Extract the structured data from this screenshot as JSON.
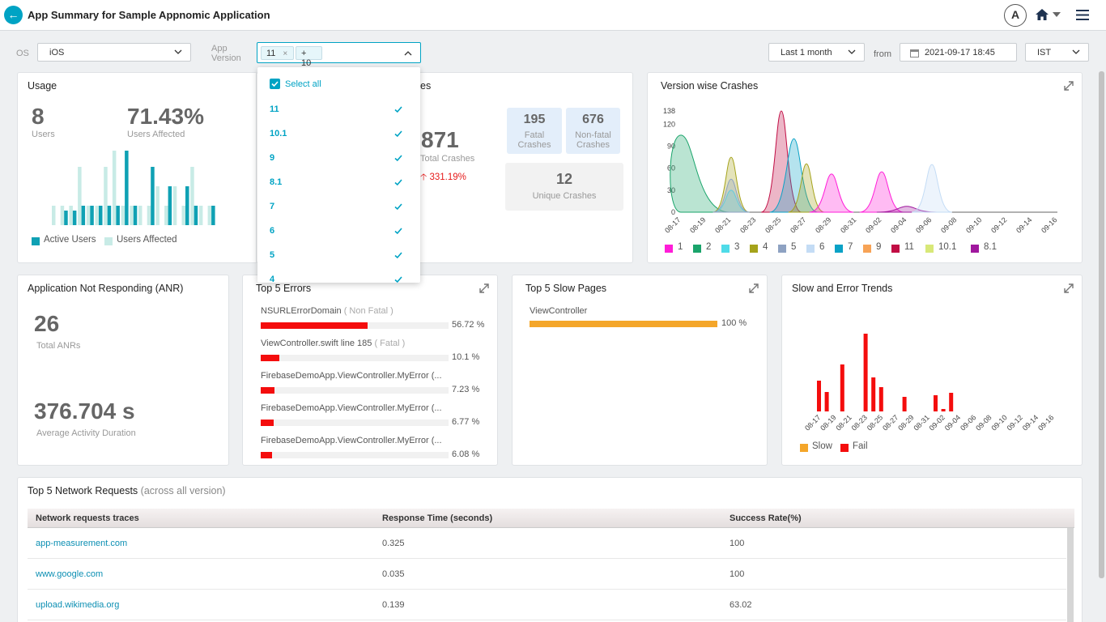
{
  "header": {
    "title": "App Summary for Sample Appnomic Application",
    "avatar_initial": "A",
    "back_icon": "arrow-left-icon",
    "menu_icon": "hamburger-icon"
  },
  "filters": {
    "os_label": "OS",
    "os_value": "iOS",
    "app_version_label": "App Version",
    "selected_chip": "11",
    "more_chip": "+ 10",
    "range_value": "Last 1 month",
    "from_label": "from",
    "date_value": "2021-09-17 18:45",
    "tz_value": "IST"
  },
  "version_dropdown": {
    "select_all": "Select all",
    "items": [
      "11",
      "10.1",
      "9",
      "8.1",
      "7",
      "6",
      "5",
      "4"
    ]
  },
  "usage": {
    "title": "Usage",
    "users": "8",
    "users_label": "Users",
    "affected": "71.43%",
    "affected_label": "Users Affected",
    "legend_active": "Active Users",
    "legend_affected": "Users Affected",
    "colors": {
      "active": "#0fa1b4",
      "affected": "#c8ebe6"
    }
  },
  "crashes": {
    "title_suffix": "es",
    "total": "871",
    "total_label": "Total Crashes",
    "change": "331.19%",
    "fatal": "195",
    "fatal_label": "Fatal Crashes",
    "nonfatal": "676",
    "nonfatal_label": "Non-fatal Crashes",
    "unique": "12",
    "unique_label": "Unique Crashes"
  },
  "version_crashes": {
    "title": "Version wise Crashes",
    "chart_data": {
      "type": "area",
      "y_ticks": [
        "0",
        "30",
        "60",
        "90",
        "120",
        "138"
      ],
      "x": [
        "08-17",
        "08-19",
        "08-21",
        "08-23",
        "08-25",
        "08-27",
        "08-29",
        "08-31",
        "09-02",
        "09-04",
        "09-06",
        "09-08",
        "09-10",
        "09-12",
        "09-14",
        "09-16"
      ],
      "ylim": [
        0,
        138
      ],
      "series": [
        {
          "name": "1",
          "color": "#ff1dd8"
        },
        {
          "name": "2",
          "color": "#1aa46b"
        },
        {
          "name": "3",
          "color": "#4fdbe8"
        },
        {
          "name": "4",
          "color": "#a5a31b"
        },
        {
          "name": "5",
          "color": "#8ea2c2"
        },
        {
          "name": "6",
          "color": "#c4dcf5"
        },
        {
          "name": "7",
          "color": "#0aa2c6"
        },
        {
          "name": "9",
          "color": "#f7a356"
        },
        {
          "name": "11",
          "color": "#c10d44"
        },
        {
          "name": "10.1",
          "color": "#d8e878"
        },
        {
          "name": "8.1",
          "color": "#a0189e"
        }
      ]
    }
  },
  "anr": {
    "title": "Application Not Responding (ANR)",
    "total": "26",
    "total_label": "Total ANRs",
    "duration": "376.704 s",
    "duration_label": "Average Activity Duration"
  },
  "errors": {
    "title": "Top 5 Errors",
    "items": [
      {
        "name": "NSURLErrorDomain",
        "type": "( Non Fatal )",
        "pct": "56.72 %",
        "value": 56.72
      },
      {
        "name": "ViewController.swift line 185",
        "type": "( Fatal )",
        "pct": "10.1 %",
        "value": 10.1
      },
      {
        "name": "FirebaseDemoApp.ViewController.MyError (...",
        "type": "",
        "pct": "7.23 %",
        "value": 7.23
      },
      {
        "name": "FirebaseDemoApp.ViewController.MyError (...",
        "type": "",
        "pct": "6.77 %",
        "value": 6.77
      },
      {
        "name": "FirebaseDemoApp.ViewController.MyError (...",
        "type": "",
        "pct": "6.08 %",
        "value": 6.08
      }
    ]
  },
  "slow_pages": {
    "title": "Top 5 Slow Pages",
    "items": [
      {
        "name": "ViewController",
        "pct": "100 %",
        "value": 100
      }
    ]
  },
  "trends": {
    "title": "Slow and Error Trends",
    "legend_slow": "Slow",
    "legend_fail": "Fail",
    "chart_data": {
      "type": "bar",
      "x": [
        "08-17",
        "08-19",
        "08-21",
        "08-23",
        "08-25",
        "08-27",
        "08-29",
        "08-31",
        "09-02",
        "09-04",
        "09-06",
        "09-08",
        "09-10",
        "09-12",
        "09-14",
        "09-16"
      ],
      "colors": {
        "slow": "#f4a62a",
        "fail": "#f40d0d"
      }
    }
  },
  "network": {
    "title": "Top 5 Network Requests",
    "subtitle": "(across all version)",
    "columns": [
      "Network requests traces",
      "Response Time (seconds)",
      "Success Rate(%)"
    ],
    "rows": [
      {
        "trace": "app-measurement.com",
        "time": "0.325",
        "rate": "100"
      },
      {
        "trace": "www.google.com",
        "time": "0.035",
        "rate": "100"
      },
      {
        "trace": "upload.wikimedia.org",
        "time": "0.139",
        "rate": "63.02"
      }
    ]
  }
}
